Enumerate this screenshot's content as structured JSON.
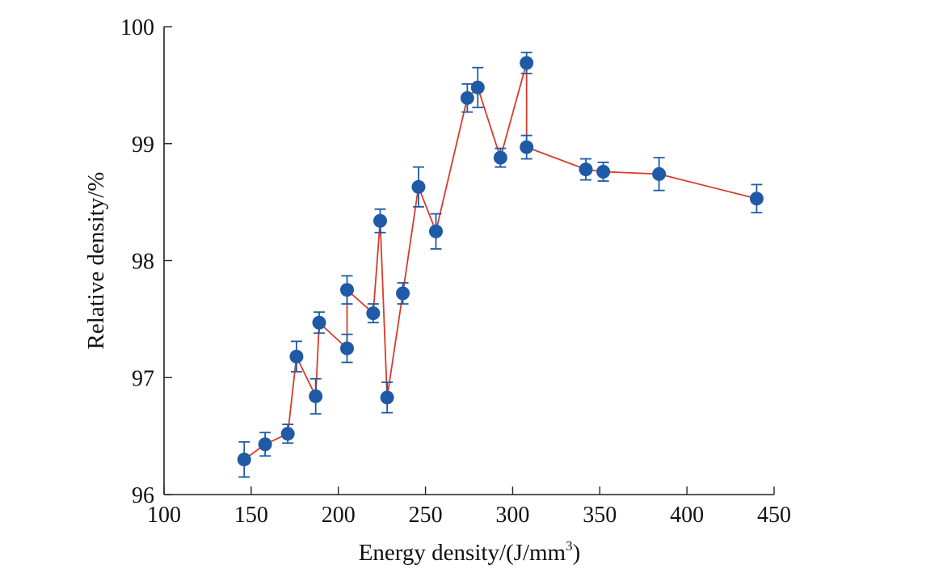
{
  "chart_data": {
    "type": "scatter",
    "title": "",
    "xlabel": "Energy density/(J/mm",
    "xlabel_sup": "3",
    "xlabel_suffix": ")",
    "ylabel": "Relative density/%",
    "xlim": [
      100,
      450
    ],
    "ylim": [
      96,
      100
    ],
    "x_ticks": [
      100,
      150,
      200,
      250,
      300,
      350,
      400,
      450
    ],
    "y_ticks": [
      96,
      97,
      98,
      99,
      100
    ],
    "x_tick_labels": [
      "100",
      "150",
      "200",
      "250",
      "300",
      "350",
      "400",
      "450"
    ],
    "y_tick_labels": [
      "96",
      "97",
      "98",
      "99",
      "100"
    ],
    "grid": false,
    "legend": "none",
    "series": [
      {
        "marker_color": "#1f5aa6",
        "line_color": "#d93a2b",
        "points": [
          {
            "x": 146,
            "y": 96.3,
            "err": 0.15
          },
          {
            "x": 158,
            "y": 96.43,
            "err": 0.1
          },
          {
            "x": 171,
            "y": 96.52,
            "err": 0.08
          },
          {
            "x": 176,
            "y": 97.18,
            "err": 0.13
          },
          {
            "x": 187,
            "y": 96.84,
            "err": 0.15
          },
          {
            "x": 189,
            "y": 97.47,
            "err": 0.09
          },
          {
            "x": 205,
            "y": 97.25,
            "err": 0.12
          },
          {
            "x": 205,
            "y": 97.75,
            "err": 0.12
          },
          {
            "x": 220,
            "y": 97.55,
            "err": 0.08
          },
          {
            "x": 224,
            "y": 98.34,
            "err": 0.1
          },
          {
            "x": 228,
            "y": 96.83,
            "err": 0.13
          },
          {
            "x": 237,
            "y": 97.72,
            "err": 0.09
          },
          {
            "x": 246,
            "y": 98.63,
            "err": 0.17
          },
          {
            "x": 256,
            "y": 98.25,
            "err": 0.15
          },
          {
            "x": 274,
            "y": 99.39,
            "err": 0.12
          },
          {
            "x": 280,
            "y": 99.48,
            "err": 0.17
          },
          {
            "x": 293,
            "y": 98.88,
            "err": 0.08
          },
          {
            "x": 308,
            "y": 99.69,
            "err": 0.09
          },
          {
            "x": 308,
            "y": 98.97,
            "err": 0.1
          },
          {
            "x": 342,
            "y": 98.78,
            "err": 0.09
          },
          {
            "x": 352,
            "y": 98.76,
            "err": 0.08
          },
          {
            "x": 384,
            "y": 98.74,
            "err": 0.14
          },
          {
            "x": 440,
            "y": 98.53,
            "err": 0.12
          }
        ]
      }
    ]
  }
}
